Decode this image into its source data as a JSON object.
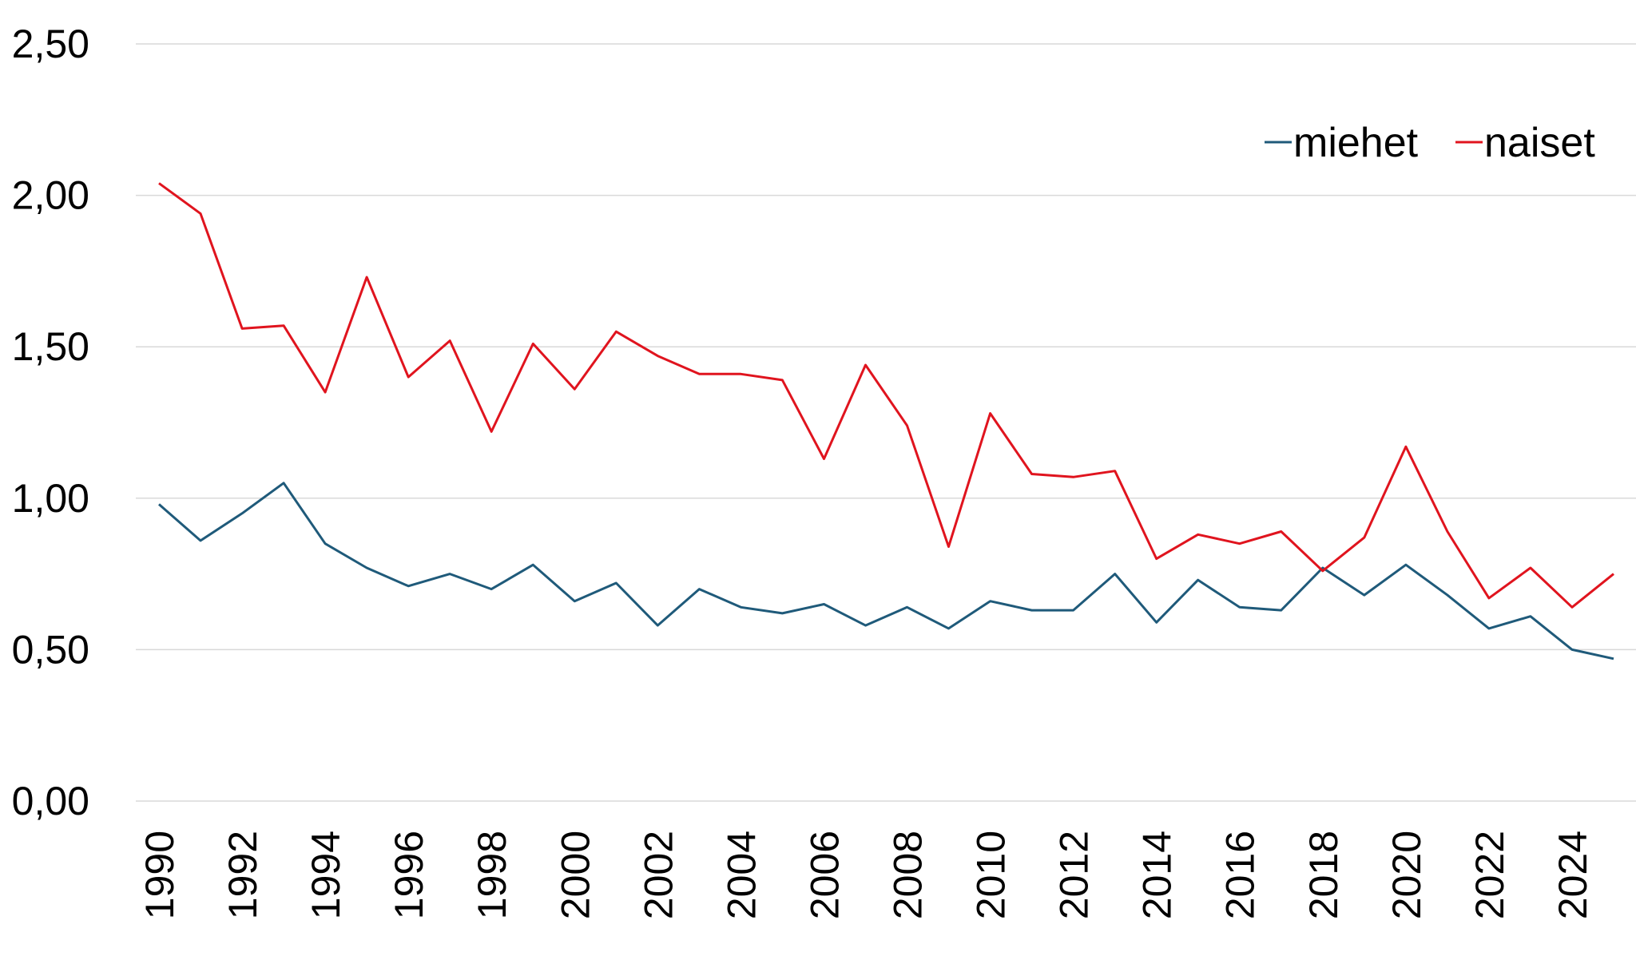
{
  "colors": {
    "miehet": "#1f5a7a",
    "naiset": "#e0141e",
    "grid": "#d9d9d9"
  },
  "chart_data": {
    "type": "line",
    "title": "",
    "xlabel": "",
    "ylabel": "",
    "x": [
      1990,
      1991,
      1992,
      1993,
      1994,
      1995,
      1996,
      1997,
      1998,
      1999,
      2000,
      2001,
      2002,
      2003,
      2004,
      2005,
      2006,
      2007,
      2008,
      2009,
      2010,
      2011,
      2012,
      2013,
      2014,
      2015,
      2016,
      2017,
      2018,
      2019,
      2020,
      2021,
      2022,
      2023,
      2024,
      2025
    ],
    "xtick_labels": [
      "1990",
      "1992",
      "1994",
      "1996",
      "1998",
      "2000",
      "2002",
      "2004",
      "2006",
      "2008",
      "2010",
      "2012",
      "2014",
      "2016",
      "2018",
      "2020",
      "2022",
      "2024"
    ],
    "ylim": [
      0,
      2.5
    ],
    "ytick_labels": [
      "0,00",
      "0,50",
      "1,00",
      "1,50",
      "2,00",
      "2,50"
    ],
    "grid": true,
    "legend_position": "top-right",
    "series": [
      {
        "name": "miehet",
        "values": [
          0.98,
          0.86,
          0.95,
          1.05,
          0.85,
          0.77,
          0.71,
          0.75,
          0.7,
          0.78,
          0.66,
          0.72,
          0.58,
          0.7,
          0.64,
          0.62,
          0.65,
          0.58,
          0.64,
          0.57,
          0.66,
          0.63,
          0.63,
          0.75,
          0.59,
          0.73,
          0.64,
          0.63,
          0.77,
          0.68,
          0.78,
          0.68,
          0.57,
          0.61,
          0.5,
          0.47
        ]
      },
      {
        "name": "naiset",
        "values": [
          2.04,
          1.94,
          1.56,
          1.57,
          1.35,
          1.73,
          1.4,
          1.52,
          1.22,
          1.51,
          1.36,
          1.55,
          1.47,
          1.41,
          1.41,
          1.39,
          1.13,
          1.44,
          1.24,
          0.84,
          1.28,
          1.08,
          1.07,
          1.09,
          0.8,
          0.88,
          0.85,
          0.89,
          0.76,
          0.87,
          1.17,
          0.89,
          0.67,
          0.77,
          0.64,
          0.75
        ]
      }
    ]
  }
}
